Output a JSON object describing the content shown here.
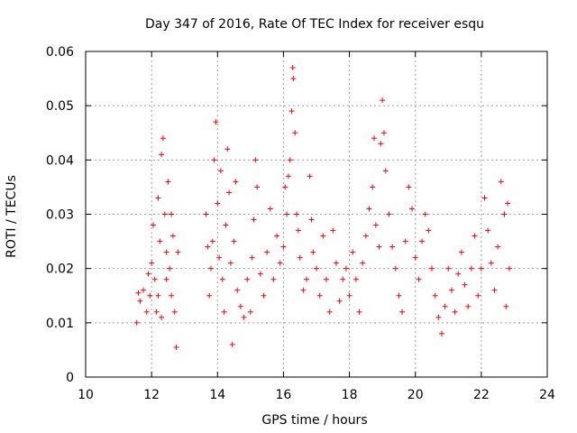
{
  "chart_data": {
    "type": "scatter",
    "title": "Day 347 of 2016, Rate Of TEC Index for receiver esqu",
    "xlabel": "GPS time / hours",
    "ylabel": "ROTI / TECUs",
    "xlim": [
      10,
      24
    ],
    "ylim": [
      0,
      0.06
    ],
    "xticks": [
      10,
      12,
      14,
      16,
      18,
      20,
      22,
      24
    ],
    "yticks": [
      0,
      0.01,
      0.02,
      0.03,
      0.04,
      0.05,
      0.06
    ],
    "xtick_labels": [
      "10",
      "12",
      "14",
      "16",
      "18",
      "20",
      "22",
      "24"
    ],
    "ytick_labels": [
      "0",
      "0.01",
      "0.02",
      "0.03",
      "0.04",
      "0.05",
      "0.06"
    ],
    "grid": true,
    "marker": "+",
    "series": [
      {
        "name": "ROTI",
        "color": "#ff0000",
        "points": [
          [
            11.55,
            0.01
          ],
          [
            11.6,
            0.0155
          ],
          [
            11.65,
            0.014
          ],
          [
            11.75,
            0.016
          ],
          [
            11.85,
            0.012
          ],
          [
            11.9,
            0.019
          ],
          [
            11.95,
            0.015
          ],
          [
            12.0,
            0.021
          ],
          [
            12.05,
            0.028
          ],
          [
            12.1,
            0.018
          ],
          [
            12.15,
            0.012
          ],
          [
            12.2,
            0.033
          ],
          [
            12.25,
            0.025
          ],
          [
            12.3,
            0.041
          ],
          [
            12.35,
            0.044
          ],
          [
            12.4,
            0.03
          ],
          [
            12.45,
            0.023
          ],
          [
            12.5,
            0.036
          ],
          [
            12.55,
            0.02
          ],
          [
            12.6,
            0.015
          ],
          [
            12.65,
            0.026
          ],
          [
            12.7,
            0.012
          ],
          [
            12.75,
            0.0055
          ],
          [
            12.8,
            0.023
          ],
          [
            12.2,
            0.015
          ],
          [
            12.3,
            0.011
          ],
          [
            12.45,
            0.018
          ],
          [
            12.6,
            0.03
          ],
          [
            13.65,
            0.03
          ],
          [
            13.7,
            0.024
          ],
          [
            13.75,
            0.015
          ],
          [
            13.8,
            0.02
          ],
          [
            13.85,
            0.025
          ],
          [
            13.9,
            0.04
          ],
          [
            13.95,
            0.047
          ],
          [
            14.0,
            0.032
          ],
          [
            14.05,
            0.022
          ],
          [
            14.1,
            0.038
          ],
          [
            14.15,
            0.018
          ],
          [
            14.2,
            0.012
          ],
          [
            14.25,
            0.028
          ],
          [
            14.3,
            0.042
          ],
          [
            14.35,
            0.034
          ],
          [
            14.4,
            0.021
          ],
          [
            14.45,
            0.006
          ],
          [
            14.5,
            0.025
          ],
          [
            14.55,
            0.036
          ],
          [
            14.6,
            0.016
          ],
          [
            14.7,
            0.013
          ],
          [
            14.8,
            0.011
          ],
          [
            14.9,
            0.018
          ],
          [
            15.0,
            0.012
          ],
          [
            15.05,
            0.022
          ],
          [
            15.1,
            0.029
          ],
          [
            15.15,
            0.04
          ],
          [
            15.2,
            0.035
          ],
          [
            15.3,
            0.019
          ],
          [
            15.4,
            0.015
          ],
          [
            15.5,
            0.023
          ],
          [
            15.6,
            0.031
          ],
          [
            15.7,
            0.018
          ],
          [
            15.8,
            0.026
          ],
          [
            15.9,
            0.021
          ],
          [
            16.0,
            0.024
          ],
          [
            16.05,
            0.035
          ],
          [
            16.1,
            0.03
          ],
          [
            16.15,
            0.037
          ],
          [
            16.2,
            0.04
          ],
          [
            16.25,
            0.049
          ],
          [
            16.28,
            0.057
          ],
          [
            16.3,
            0.055
          ],
          [
            16.35,
            0.045
          ],
          [
            16.4,
            0.03
          ],
          [
            16.45,
            0.027
          ],
          [
            16.5,
            0.022
          ],
          [
            16.6,
            0.016
          ],
          [
            16.7,
            0.018
          ],
          [
            16.8,
            0.037
          ],
          [
            16.85,
            0.029
          ],
          [
            16.9,
            0.023
          ],
          [
            17.0,
            0.02
          ],
          [
            17.1,
            0.015
          ],
          [
            17.2,
            0.026
          ],
          [
            17.3,
            0.018
          ],
          [
            17.4,
            0.012
          ],
          [
            17.5,
            0.027
          ],
          [
            17.6,
            0.021
          ],
          [
            17.7,
            0.014
          ],
          [
            17.8,
            0.018
          ],
          [
            17.9,
            0.02
          ],
          [
            18.0,
            0.015
          ],
          [
            18.1,
            0.023
          ],
          [
            18.2,
            0.018
          ],
          [
            18.3,
            0.012
          ],
          [
            18.4,
            0.021
          ],
          [
            18.5,
            0.026
          ],
          [
            18.6,
            0.031
          ],
          [
            18.7,
            0.035
          ],
          [
            18.75,
            0.044
          ],
          [
            18.8,
            0.028
          ],
          [
            18.9,
            0.024
          ],
          [
            18.95,
            0.043
          ],
          [
            19.0,
            0.051
          ],
          [
            19.05,
            0.045
          ],
          [
            19.1,
            0.038
          ],
          [
            19.2,
            0.03
          ],
          [
            19.3,
            0.024
          ],
          [
            19.4,
            0.02
          ],
          [
            19.5,
            0.015
          ],
          [
            19.6,
            0.012
          ],
          [
            19.7,
            0.025
          ],
          [
            19.8,
            0.035
          ],
          [
            19.9,
            0.031
          ],
          [
            20.0,
            0.022
          ],
          [
            20.1,
            0.018
          ],
          [
            20.2,
            0.025
          ],
          [
            20.3,
            0.03
          ],
          [
            20.4,
            0.027
          ],
          [
            20.5,
            0.02
          ],
          [
            20.6,
            0.015
          ],
          [
            20.7,
            0.011
          ],
          [
            20.8,
            0.008
          ],
          [
            20.9,
            0.013
          ],
          [
            21.0,
            0.02
          ],
          [
            21.1,
            0.016
          ],
          [
            21.2,
            0.012
          ],
          [
            21.3,
            0.019
          ],
          [
            21.4,
            0.023
          ],
          [
            21.5,
            0.017
          ],
          [
            21.6,
            0.013
          ],
          [
            21.7,
            0.02
          ],
          [
            21.8,
            0.026
          ],
          [
            21.9,
            0.015
          ],
          [
            22.0,
            0.02
          ],
          [
            22.1,
            0.033
          ],
          [
            22.2,
            0.027
          ],
          [
            22.3,
            0.021
          ],
          [
            22.4,
            0.016
          ],
          [
            22.5,
            0.024
          ],
          [
            22.6,
            0.036
          ],
          [
            22.7,
            0.03
          ],
          [
            22.8,
            0.032
          ],
          [
            22.85,
            0.02
          ],
          [
            22.75,
            0.013
          ]
        ]
      }
    ]
  }
}
